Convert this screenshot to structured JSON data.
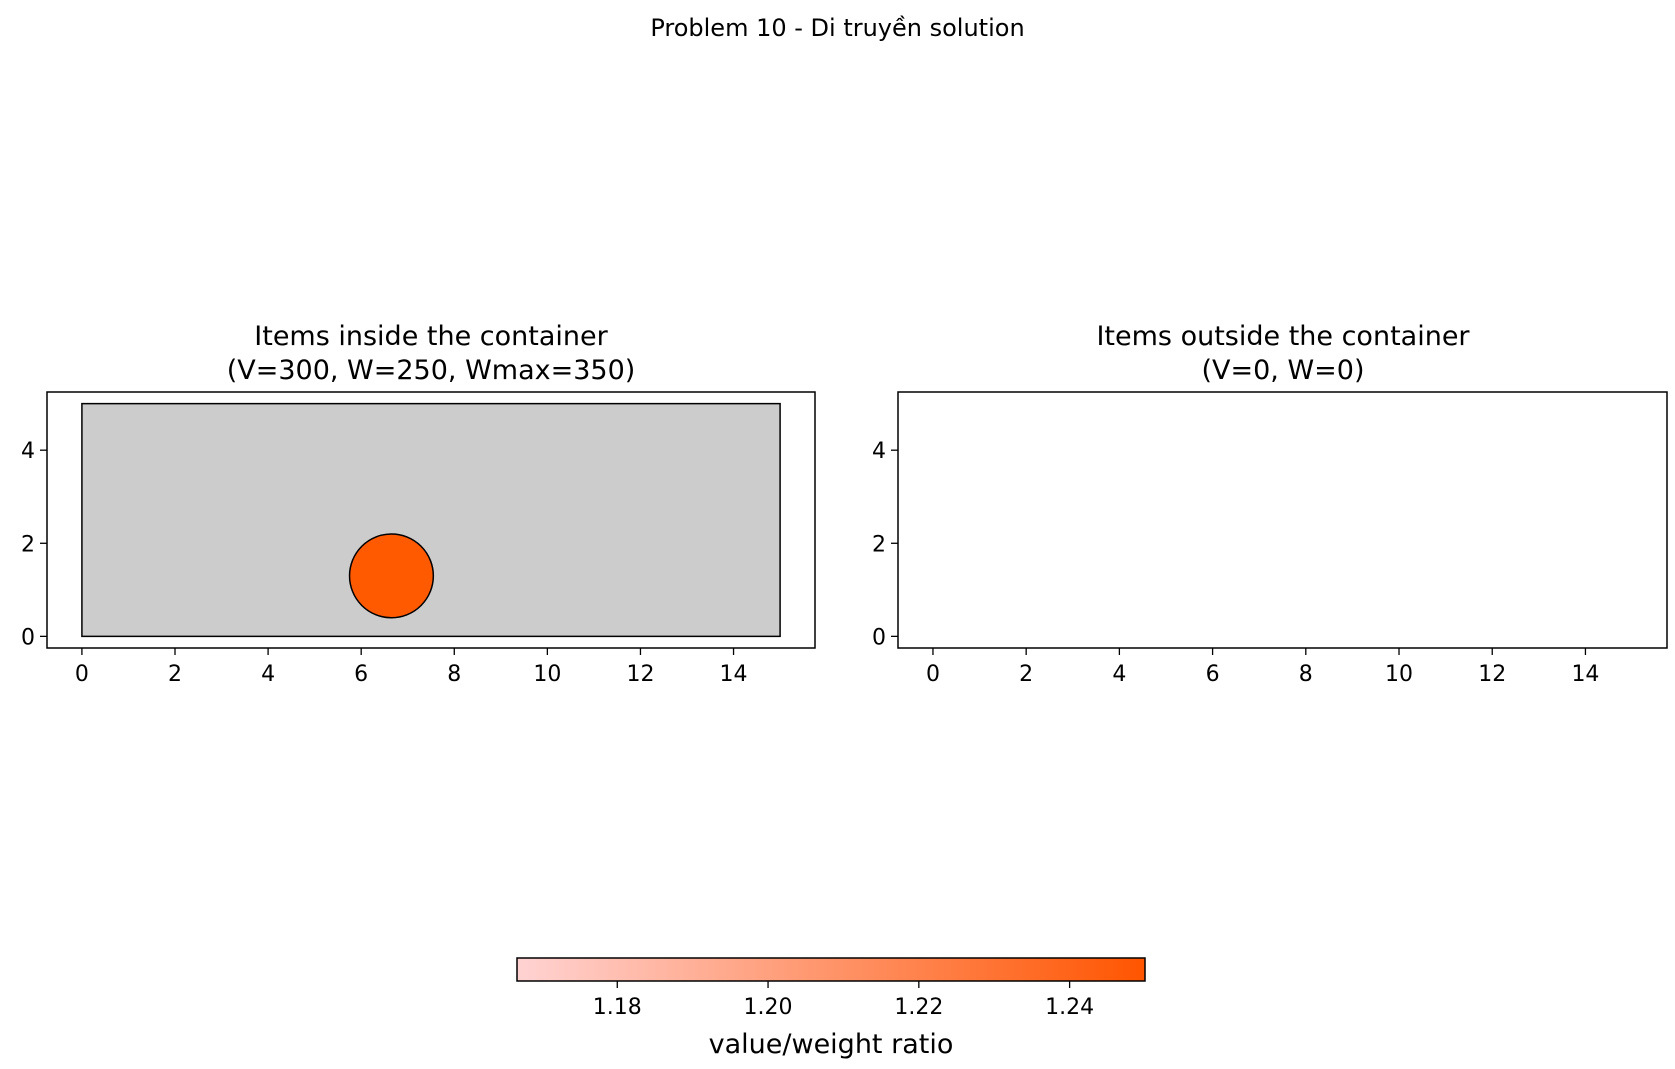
{
  "suptitle": "Problem 10 - Di truyền solution",
  "chart_data": [
    {
      "type": "scatter",
      "panel": "left",
      "title_line1": "Items inside the container",
      "title_line2": "(V=300, W=250, Wmax=350)",
      "xlim": [
        -0.75,
        15.75
      ],
      "ylim": [
        -0.25,
        5.25
      ],
      "xticks": [
        0,
        2,
        4,
        6,
        8,
        10,
        12,
        14
      ],
      "yticks": [
        0,
        2,
        4
      ],
      "container": {
        "x": [
          0,
          15
        ],
        "y": [
          0,
          5
        ],
        "fill": "#cccccc"
      },
      "items": [
        {
          "shape": "circle",
          "cx": 6.65,
          "cy": 1.3,
          "r": 0.9,
          "ratio": 1.25,
          "color": "#ff5a00"
        }
      ]
    },
    {
      "type": "scatter",
      "panel": "right",
      "title_line1": "Items outside the container",
      "title_line2": "(V=0, W=0)",
      "xlim": [
        -0.75,
        15.75
      ],
      "ylim": [
        -0.25,
        5.25
      ],
      "xticks": [
        0,
        2,
        4,
        6,
        8,
        10,
        12,
        14
      ],
      "yticks": [
        0,
        2,
        4
      ],
      "items": []
    }
  ],
  "colorbar": {
    "label": "value/weight ratio",
    "range": [
      1.1667,
      1.25
    ],
    "ticks": [
      1.18,
      1.2,
      1.22,
      1.24
    ],
    "tick_labels": [
      "1.18",
      "1.20",
      "1.22",
      "1.24"
    ],
    "color_low": "#ffd3d3",
    "color_high": "#ff5500"
  }
}
